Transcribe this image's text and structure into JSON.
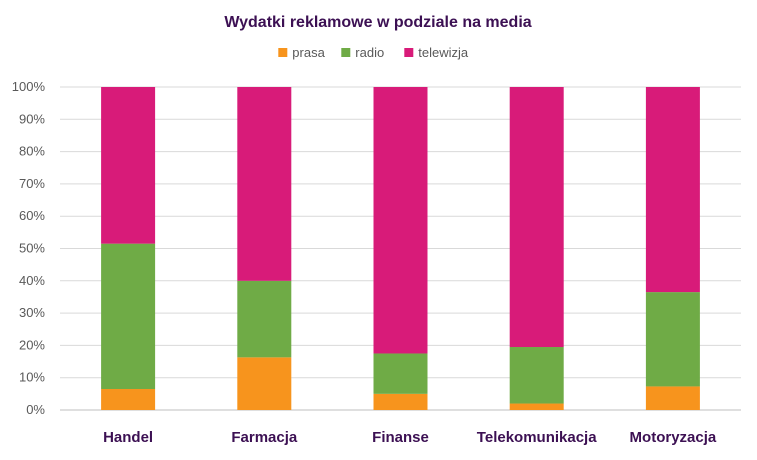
{
  "chart_data": {
    "type": "bar",
    "stacked": "percent",
    "title": "Wydatki reklamowe w podziale na media",
    "legend_position": "top",
    "categories": [
      "Handel",
      "Farmacja",
      "Finanse",
      "Telekomunikacja",
      "Motoryzacja"
    ],
    "series": [
      {
        "name": "prasa",
        "color": "#f7941d",
        "values": [
          6.5,
          16.3,
          5.0,
          2.0,
          7.3
        ]
      },
      {
        "name": "radio",
        "color": "#6fab46",
        "values": [
          45.0,
          23.7,
          12.5,
          17.5,
          29.2
        ]
      },
      {
        "name": "telewizja",
        "color": "#d81b79",
        "values": [
          48.5,
          60.0,
          82.5,
          80.5,
          63.5
        ]
      }
    ],
    "ylim": [
      0,
      100
    ],
    "yticks": [
      "0%",
      "10%",
      "20%",
      "30%",
      "40%",
      "50%",
      "60%",
      "70%",
      "80%",
      "90%",
      "100%"
    ],
    "grid": true,
    "title_color": "#3c1053",
    "category_label_color": "#3c1053"
  }
}
